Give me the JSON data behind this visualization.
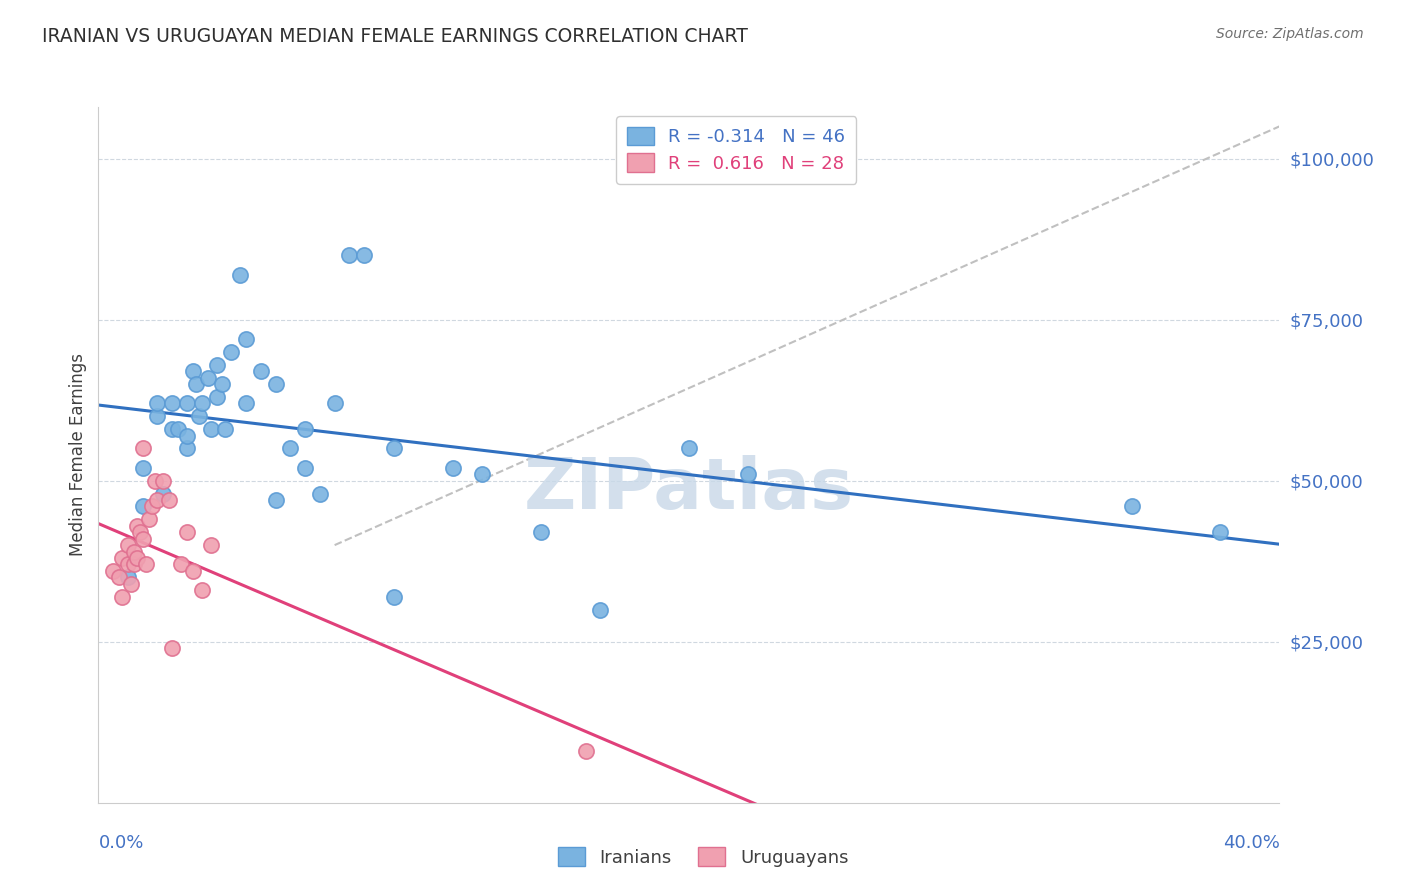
{
  "title": "IRANIAN VS URUGUAYAN MEDIAN FEMALE EARNINGS CORRELATION CHART",
  "source": "Source: ZipAtlas.com",
  "ylabel": "Median Female Earnings",
  "y_ticks": [
    25000,
    50000,
    75000,
    100000
  ],
  "y_tick_labels": [
    "$25,000",
    "$50,000",
    "$75,000",
    "$100,000"
  ],
  "x_min": 0.0,
  "x_max": 0.4,
  "y_min": 0,
  "y_max": 108000,
  "iranian_R": -0.314,
  "iranian_N": 46,
  "uruguayan_R": 0.616,
  "uruguayan_N": 28,
  "iranian_color": "#7ab3e0",
  "uruguayan_color": "#f0a0b0",
  "iranian_edge": "#5b9bd5",
  "uruguayan_edge": "#e07090",
  "trend_iranian_color": "#3070c0",
  "trend_uruguayan_color": "#e0407a",
  "diagonal_color": "#c0c0c0",
  "watermark_color": "#c8d8e8",
  "background_color": "#ffffff",
  "grid_color": "#d0d8e0",
  "title_color": "#303030",
  "axis_label_color": "#4472c4",
  "iranian_x": [
    0.01,
    0.015,
    0.015,
    0.02,
    0.02,
    0.022,
    0.025,
    0.025,
    0.027,
    0.03,
    0.03,
    0.03,
    0.032,
    0.033,
    0.034,
    0.035,
    0.037,
    0.038,
    0.04,
    0.04,
    0.042,
    0.043,
    0.045,
    0.048,
    0.05,
    0.05,
    0.055,
    0.06,
    0.06,
    0.065,
    0.07,
    0.07,
    0.075,
    0.08,
    0.085,
    0.09,
    0.1,
    0.1,
    0.12,
    0.13,
    0.15,
    0.17,
    0.2,
    0.22,
    0.35,
    0.38
  ],
  "iranian_y": [
    35000,
    46000,
    52000,
    60000,
    62000,
    48000,
    58000,
    62000,
    58000,
    55000,
    57000,
    62000,
    67000,
    65000,
    60000,
    62000,
    66000,
    58000,
    63000,
    68000,
    65000,
    58000,
    70000,
    82000,
    72000,
    62000,
    67000,
    65000,
    47000,
    55000,
    58000,
    52000,
    48000,
    62000,
    85000,
    85000,
    55000,
    32000,
    52000,
    51000,
    42000,
    30000,
    55000,
    51000,
    46000,
    42000
  ],
  "uruguayan_x": [
    0.005,
    0.007,
    0.008,
    0.008,
    0.01,
    0.01,
    0.011,
    0.012,
    0.012,
    0.013,
    0.013,
    0.014,
    0.015,
    0.015,
    0.016,
    0.017,
    0.018,
    0.019,
    0.02,
    0.022,
    0.024,
    0.025,
    0.028,
    0.03,
    0.032,
    0.035,
    0.038,
    0.165
  ],
  "uruguayan_y": [
    36000,
    35000,
    32000,
    38000,
    37000,
    40000,
    34000,
    37000,
    39000,
    38000,
    43000,
    42000,
    41000,
    55000,
    37000,
    44000,
    46000,
    50000,
    47000,
    50000,
    47000,
    24000,
    37000,
    42000,
    36000,
    33000,
    40000,
    8000
  ]
}
